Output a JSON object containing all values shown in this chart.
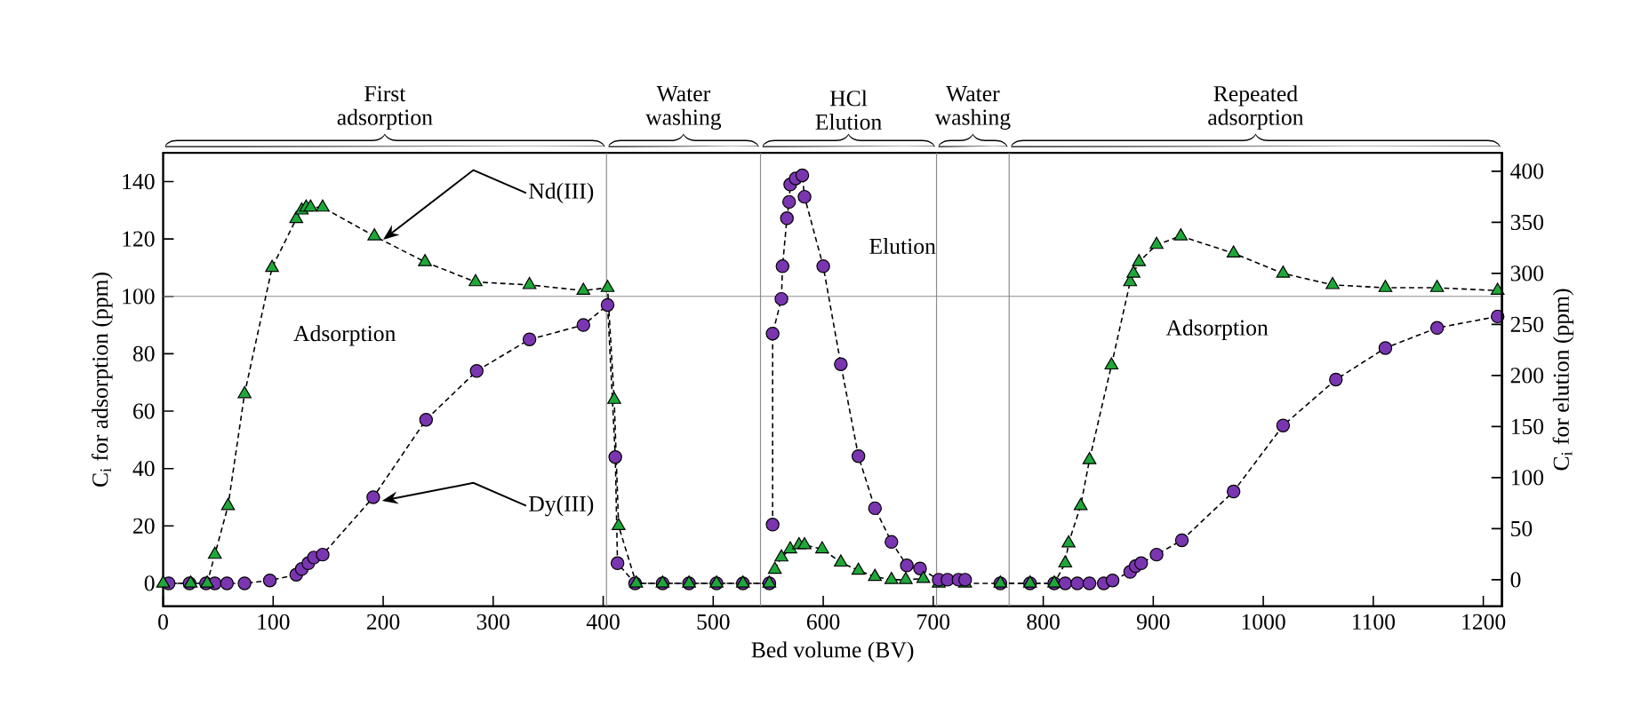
{
  "chart_data": {
    "type": "line",
    "xlabel": "Bed volume (BV)",
    "ylabel": "C$_{i}$ for adsorption (ppm)",
    "y2label": "C$_{i}$ for elution (ppm)",
    "xlim": [
      0,
      1217
    ],
    "ylim": [
      -8,
      150
    ],
    "y2lim": [
      -26,
      418
    ],
    "xticks": [
      0,
      100,
      200,
      300,
      400,
      500,
      600,
      700,
      800,
      900,
      1000,
      1100,
      1200
    ],
    "yticks": [
      0,
      20,
      40,
      60,
      80,
      100,
      120,
      140
    ],
    "y2ticks": [
      0,
      50,
      100,
      150,
      200,
      250,
      300,
      350,
      400
    ],
    "line_style": "dashed",
    "grid": false,
    "series": [
      {
        "name": "Dy(III)",
        "color": "#7a35b0",
        "marker": "circle",
        "x": [
          5,
          24,
          39,
          47,
          58,
          74,
          97,
          121,
          126,
          132,
          137,
          145,
          191,
          239,
          285,
          333,
          382,
          404,
          411,
          413,
          429,
          454,
          478,
          503,
          527,
          551
        ],
        "values": [
          0,
          0,
          0,
          0,
          0,
          0,
          1,
          3,
          5,
          7,
          9,
          10,
          30,
          57,
          74,
          85,
          90,
          97,
          44,
          7,
          0,
          0,
          0,
          0,
          0,
          0
        ]
      },
      {
        "color": "#7a35b0",
        "marker": "circle",
        "axis": "y2",
        "x": [
          554,
          554,
          562,
          563,
          567,
          569,
          570,
          575,
          581,
          583,
          600,
          616,
          632,
          647,
          662,
          676,
          688,
          705,
          713,
          723,
          729
        ],
        "values": [
          54,
          241,
          275,
          307,
          354,
          370,
          387,
          393,
          396,
          375,
          307,
          211,
          121,
          70,
          37,
          14,
          11,
          0,
          0,
          0,
          0
        ]
      },
      {
        "color": "#7a35b0",
        "marker": "circle",
        "x": [
          761,
          788,
          810,
          820,
          831,
          842,
          855,
          863,
          879,
          884,
          889,
          903,
          926,
          973,
          1018,
          1066,
          1111,
          1158,
          1213
        ],
        "values": [
          0,
          0,
          0,
          0,
          0,
          0,
          0,
          1,
          4,
          6,
          7,
          10,
          15,
          32,
          55,
          71,
          82,
          89,
          93
        ]
      },
      {
        "name": "Nd(III)",
        "color": "#1fa83a",
        "marker": "triangle",
        "x": [
          0,
          25,
          40,
          47,
          59,
          74,
          99,
          121,
          126,
          130,
          134,
          145,
          192,
          238,
          284,
          333,
          382,
          404,
          410,
          414,
          430,
          454,
          478,
          503,
          527,
          551
        ],
        "values": [
          0,
          0,
          0,
          10,
          27,
          66,
          110,
          127,
          130,
          131,
          131,
          131,
          121,
          112,
          105,
          104,
          102,
          103,
          64,
          20,
          0,
          0,
          0,
          0,
          0,
          0
        ]
      },
      {
        "color": "#1fa83a",
        "marker": "triangle",
        "axis": "y2",
        "x": [
          556,
          562,
          570,
          578,
          583,
          599,
          616,
          632,
          647,
          662,
          675,
          691
        ],
        "values": [
          10,
          22,
          30,
          34,
          34,
          30,
          17,
          9,
          3,
          0,
          0,
          1
        ]
      },
      {
        "color": "#1fa83a",
        "marker": "triangle",
        "x": [
          705,
          729,
          761,
          788,
          810,
          820,
          823,
          834,
          842,
          862,
          879,
          882,
          887,
          903,
          925,
          973,
          1018,
          1063,
          1111,
          1158,
          1213
        ],
        "values": [
          0,
          0,
          0,
          0,
          0,
          7,
          14,
          27,
          43,
          76,
          105,
          108,
          112,
          118,
          121,
          115,
          108,
          104,
          103,
          103,
          102
        ]
      }
    ],
    "ref_lines": [
      {
        "axis": "x",
        "value": 403,
        "color": "#8c8c8c"
      },
      {
        "axis": "x",
        "value": 543,
        "color": "#8c8c8c"
      },
      {
        "axis": "x",
        "value": 703,
        "color": "#8c8c8c"
      },
      {
        "axis": "x",
        "value": 769,
        "color": "#8c8c8c"
      },
      {
        "axis": "y",
        "value": 100,
        "color": "#8c8c8c"
      }
    ],
    "annotations": [
      "First adsorption",
      "Water washing",
      "HCl Elution",
      "Water washing",
      "Repeated adsorption",
      "Adsorption",
      "Elution",
      "Adsorption"
    ]
  }
}
